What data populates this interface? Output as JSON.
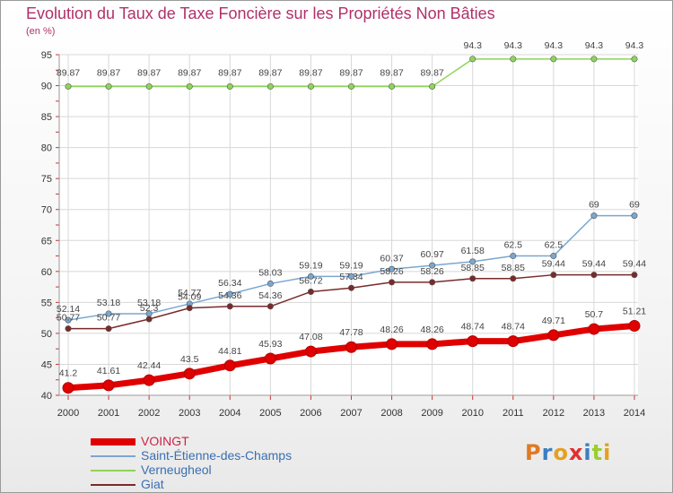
{
  "header": {
    "title": "Evolution du Taux de Taxe Foncière sur les Propriétés Non Bâties",
    "unit": "(en %)"
  },
  "logo": {
    "text": "Proxiti",
    "colors": [
      "#e07a22",
      "#3a7fc1",
      "#e4a020",
      "#e03030",
      "#3a7fc1",
      "#9acd32",
      "#e4a020"
    ]
  },
  "chart_data": {
    "type": "line",
    "title": "Evolution du Taux de Taxe Foncière sur les Propriétés Non Bâties",
    "ylabel": "(en %)",
    "xlabel": "",
    "x": [
      "2000",
      "2001",
      "2002",
      "2003",
      "2004",
      "2005",
      "2006",
      "2007",
      "2008",
      "2009",
      "2010",
      "2011",
      "2012",
      "2013",
      "2014"
    ],
    "ylim": [
      40,
      95
    ],
    "yticks": [
      40,
      45,
      50,
      55,
      60,
      65,
      70,
      75,
      80,
      85,
      90,
      95
    ],
    "grid": true,
    "legend_position": "bottom-left",
    "series": [
      {
        "name": "VOINGT",
        "color": "#e00000",
        "values": [
          41.2,
          41.61,
          42.44,
          43.5,
          44.81,
          45.93,
          47.08,
          47.78,
          48.26,
          48.26,
          48.74,
          48.74,
          49.71,
          50.7,
          51.21
        ],
        "labels": [
          "41.2",
          "41.61",
          "42.44",
          "43.5",
          "44.81",
          "45.93",
          "47.08",
          "47.78",
          "48.26",
          "48.26",
          "48.74",
          "48.74",
          "49.71",
          "50.7",
          "51.21"
        ]
      },
      {
        "name": "Saint-Étienne-des-Champs",
        "color": "#7aa7cf",
        "values": [
          52.14,
          53.18,
          53.18,
          54.77,
          56.34,
          58.03,
          59.19,
          59.19,
          60.37,
          60.97,
          61.58,
          62.5,
          62.5,
          69,
          69
        ],
        "labels": [
          "52.14",
          "53.18",
          "53.18",
          "54.77",
          "56.34",
          "58.03",
          "59.19",
          "59.19",
          "60.37",
          "60.97",
          "61.58",
          "62.5",
          "62.5",
          "69",
          "69"
        ]
      },
      {
        "name": "Verneugheol",
        "color": "#8fd45a",
        "values": [
          89.87,
          89.87,
          89.87,
          89.87,
          89.87,
          89.87,
          89.87,
          89.87,
          89.87,
          89.87,
          94.3,
          94.3,
          94.3,
          94.3,
          94.3
        ],
        "labels": [
          "89.87",
          "89.87",
          "89.87",
          "89.87",
          "89.87",
          "89.87",
          "89.87",
          "89.87",
          "89.87",
          "89.87",
          "94.3",
          "94.3",
          "94.3",
          "94.3",
          "94.3"
        ]
      },
      {
        "name": "Giat",
        "color": "#7a2a2a",
        "values": [
          50.77,
          50.77,
          52.3,
          54.09,
          54.36,
          54.36,
          56.72,
          57.34,
          58.26,
          58.26,
          58.85,
          58.85,
          59.44,
          59.44,
          59.44
        ],
        "labels": [
          "50.77",
          "50.77",
          "52.3",
          "54.09",
          "54.36",
          "54.36",
          "56.72",
          "57.34",
          "58.26",
          "58.26",
          "58.85",
          "58.85",
          "59.44",
          "59.44",
          "59.44"
        ]
      }
    ]
  }
}
